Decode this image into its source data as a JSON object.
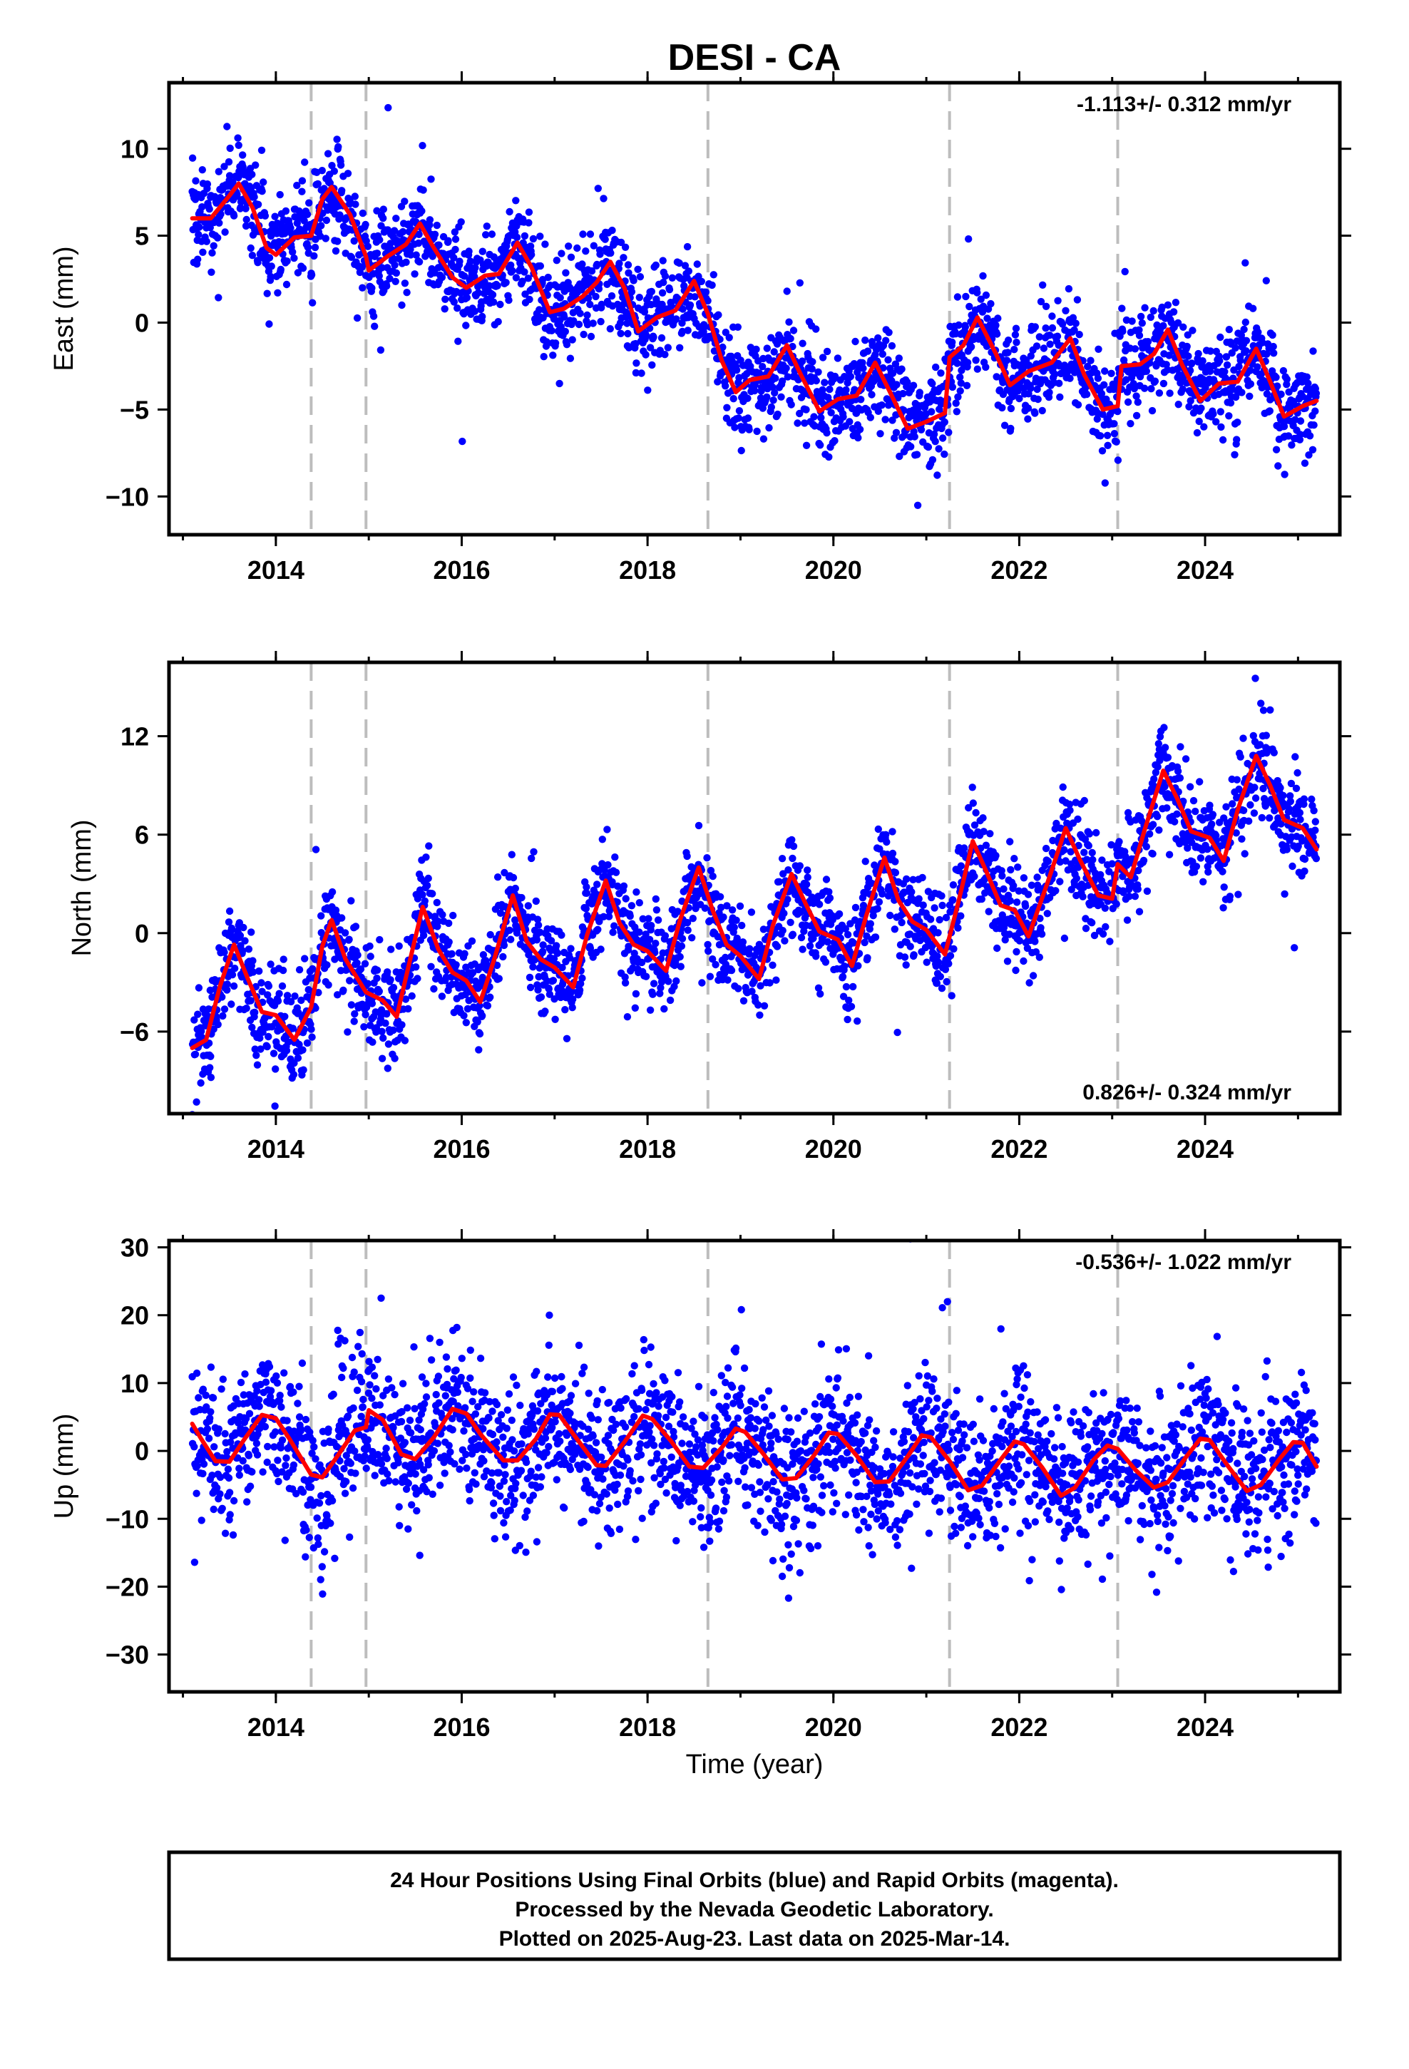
{
  "chart_data": {
    "type": "scatter",
    "title": "DESI - CA",
    "xlabel": "Time (year)",
    "xlim": [
      2012.85,
      2025.45
    ],
    "xticks": [
      2014,
      2016,
      2018,
      2020,
      2022,
      2024
    ],
    "equipment_change_epochs": [
      2014.38,
      2014.97,
      2018.65,
      2021.25,
      2023.06
    ],
    "colors": {
      "points": "#0000ff",
      "fit": "#ff0000",
      "breaks": "#bdbdbd",
      "frame": "#000000"
    },
    "panels": [
      {
        "name": "East",
        "ylabel": "East (mm)",
        "ylim": [
          -12.2,
          13.8
        ],
        "yticks": [
          10,
          5,
          0,
          -5,
          -10
        ],
        "yticklabels": [
          "10",
          "5",
          "0",
          "−5",
          "−10"
        ],
        "rate_label": "-1.113+/- 0.312 mm/yr",
        "rate_position": "top-right",
        "seasonal_fit": [
          [
            2013.1,
            6.0
          ],
          [
            2013.3,
            6.0
          ],
          [
            2013.5,
            7.3
          ],
          [
            2013.6,
            8.0
          ],
          [
            2013.75,
            6.6
          ],
          [
            2013.9,
            4.3
          ],
          [
            2014.0,
            3.9
          ],
          [
            2014.2,
            4.9
          ],
          [
            2014.38,
            5.0
          ],
          [
            2014.5,
            7.1
          ],
          [
            2014.6,
            7.8
          ],
          [
            2014.8,
            6.2
          ],
          [
            2014.97,
            3.8
          ],
          [
            2015.0,
            3.0
          ],
          [
            2015.2,
            3.8
          ],
          [
            2015.4,
            4.5
          ],
          [
            2015.55,
            5.7
          ],
          [
            2015.7,
            4.3
          ],
          [
            2015.9,
            2.6
          ],
          [
            2016.05,
            2.0
          ],
          [
            2016.25,
            2.7
          ],
          [
            2016.4,
            2.8
          ],
          [
            2016.6,
            4.6
          ],
          [
            2016.75,
            3.2
          ],
          [
            2016.95,
            0.6
          ],
          [
            2017.1,
            0.8
          ],
          [
            2017.3,
            1.5
          ],
          [
            2017.45,
            2.3
          ],
          [
            2017.6,
            3.5
          ],
          [
            2017.75,
            2.0
          ],
          [
            2017.9,
            -0.5
          ],
          [
            2018.1,
            0.3
          ],
          [
            2018.3,
            0.7
          ],
          [
            2018.5,
            2.4
          ],
          [
            2018.65,
            0.5
          ],
          [
            2018.8,
            -2.2
          ],
          [
            2018.95,
            -4.0
          ],
          [
            2019.1,
            -3.3
          ],
          [
            2019.3,
            -3.1
          ],
          [
            2019.5,
            -1.3
          ],
          [
            2019.65,
            -3.0
          ],
          [
            2019.85,
            -5.1
          ],
          [
            2020.05,
            -4.4
          ],
          [
            2020.25,
            -4.2
          ],
          [
            2020.45,
            -2.3
          ],
          [
            2020.6,
            -3.9
          ],
          [
            2020.8,
            -6.1
          ],
          [
            2021.0,
            -5.7
          ],
          [
            2021.2,
            -5.2
          ],
          [
            2021.25,
            -2.0
          ],
          [
            2021.4,
            -1.3
          ],
          [
            2021.55,
            0.3
          ],
          [
            2021.75,
            -1.8
          ],
          [
            2021.9,
            -3.6
          ],
          [
            2022.1,
            -2.8
          ],
          [
            2022.35,
            -2.3
          ],
          [
            2022.55,
            -0.9
          ],
          [
            2022.7,
            -3.0
          ],
          [
            2022.9,
            -5.0
          ],
          [
            2023.06,
            -4.8
          ],
          [
            2023.1,
            -2.5
          ],
          [
            2023.3,
            -2.4
          ],
          [
            2023.45,
            -1.8
          ],
          [
            2023.6,
            -0.4
          ],
          [
            2023.75,
            -2.4
          ],
          [
            2023.95,
            -4.5
          ],
          [
            2024.15,
            -3.5
          ],
          [
            2024.35,
            -3.4
          ],
          [
            2024.55,
            -1.5
          ],
          [
            2024.7,
            -3.4
          ],
          [
            2024.85,
            -5.4
          ],
          [
            2025.05,
            -4.8
          ],
          [
            2025.2,
            -4.5
          ]
        ]
      },
      {
        "name": "North",
        "ylabel": "North (mm)",
        "ylim": [
          -11,
          16.5
        ],
        "yticks": [
          12,
          6,
          0,
          -6
        ],
        "yticklabels": [
          "12",
          "6",
          "0",
          "−6"
        ],
        "rate_label": "0.826+/- 0.324 mm/yr",
        "rate_position": "bottom-right",
        "seasonal_fit": [
          [
            2013.1,
            -7.0
          ],
          [
            2013.25,
            -6.5
          ],
          [
            2013.4,
            -3.2
          ],
          [
            2013.55,
            -0.7
          ],
          [
            2013.7,
            -2.8
          ],
          [
            2013.85,
            -4.8
          ],
          [
            2014.0,
            -5.0
          ],
          [
            2014.2,
            -6.5
          ],
          [
            2014.38,
            -4.5
          ],
          [
            2014.5,
            -0.8
          ],
          [
            2014.6,
            0.8
          ],
          [
            2014.75,
            -1.6
          ],
          [
            2014.97,
            -3.6
          ],
          [
            2015.15,
            -4.1
          ],
          [
            2015.3,
            -5.1
          ],
          [
            2015.45,
            -1.5
          ],
          [
            2015.58,
            1.6
          ],
          [
            2015.75,
            -1.0
          ],
          [
            2015.9,
            -2.4
          ],
          [
            2016.05,
            -2.9
          ],
          [
            2016.2,
            -4.2
          ],
          [
            2016.35,
            -1.6
          ],
          [
            2016.55,
            2.3
          ],
          [
            2016.7,
            -0.5
          ],
          [
            2016.85,
            -1.6
          ],
          [
            2017.0,
            -2.1
          ],
          [
            2017.2,
            -3.3
          ],
          [
            2017.35,
            -0.1
          ],
          [
            2017.55,
            3.2
          ],
          [
            2017.7,
            0.6
          ],
          [
            2017.85,
            -0.7
          ],
          [
            2018.0,
            -1.1
          ],
          [
            2018.2,
            -2.3
          ],
          [
            2018.35,
            0.8
          ],
          [
            2018.55,
            4.0
          ],
          [
            2018.7,
            1.4
          ],
          [
            2018.85,
            -0.7
          ],
          [
            2019.0,
            -1.4
          ],
          [
            2019.2,
            -2.8
          ],
          [
            2019.35,
            0.5
          ],
          [
            2019.55,
            3.6
          ],
          [
            2019.7,
            1.8
          ],
          [
            2019.85,
            0.1
          ],
          [
            2020.05,
            -0.4
          ],
          [
            2020.2,
            -2.0
          ],
          [
            2020.35,
            1.0
          ],
          [
            2020.55,
            4.6
          ],
          [
            2020.7,
            2.0
          ],
          [
            2020.85,
            0.7
          ],
          [
            2021.0,
            0.2
          ],
          [
            2021.2,
            -1.3
          ],
          [
            2021.35,
            2.0
          ],
          [
            2021.5,
            5.6
          ],
          [
            2021.65,
            3.7
          ],
          [
            2021.8,
            1.7
          ],
          [
            2021.95,
            1.4
          ],
          [
            2022.1,
            -0.2
          ],
          [
            2022.3,
            3.0
          ],
          [
            2022.5,
            6.4
          ],
          [
            2022.65,
            4.5
          ],
          [
            2022.85,
            2.3
          ],
          [
            2023.0,
            2.1
          ],
          [
            2023.06,
            4.2
          ],
          [
            2023.2,
            3.4
          ],
          [
            2023.35,
            6.3
          ],
          [
            2023.55,
            9.9
          ],
          [
            2023.7,
            8.2
          ],
          [
            2023.85,
            6.2
          ],
          [
            2024.05,
            5.8
          ],
          [
            2024.2,
            4.4
          ],
          [
            2024.35,
            7.5
          ],
          [
            2024.55,
            10.8
          ],
          [
            2024.7,
            9.0
          ],
          [
            2024.85,
            6.9
          ],
          [
            2025.05,
            6.4
          ],
          [
            2025.2,
            5.1
          ]
        ]
      },
      {
        "name": "Up",
        "ylabel": "Up (mm)",
        "ylim": [
          -35.5,
          31
        ],
        "yticks": [
          30,
          20,
          10,
          0,
          -10,
          -20,
          -30
        ],
        "yticklabels": [
          "30",
          "20",
          "10",
          "0",
          "−10",
          "−20",
          "−30"
        ],
        "rate_label": "-0.536+/- 1.022 mm/yr",
        "rate_position": "top-right",
        "seasonal_fit": [
          [
            2013.1,
            4.0
          ],
          [
            2013.2,
            1.7
          ],
          [
            2013.35,
            -1.5
          ],
          [
            2013.5,
            -1.6
          ],
          [
            2013.65,
            1.5
          ],
          [
            2013.85,
            5.3
          ],
          [
            2014.0,
            4.8
          ],
          [
            2014.15,
            1.7
          ],
          [
            2014.38,
            -3.5
          ],
          [
            2014.5,
            -3.9
          ],
          [
            2014.65,
            -1.0
          ],
          [
            2014.85,
            3.0
          ],
          [
            2014.97,
            3.5
          ],
          [
            2015.0,
            6.0
          ],
          [
            2015.15,
            4.6
          ],
          [
            2015.35,
            -0.5
          ],
          [
            2015.5,
            -1.2
          ],
          [
            2015.7,
            2.0
          ],
          [
            2015.9,
            6.2
          ],
          [
            2016.05,
            5.5
          ],
          [
            2016.2,
            2.5
          ],
          [
            2016.45,
            -1.4
          ],
          [
            2016.6,
            -1.4
          ],
          [
            2016.8,
            1.8
          ],
          [
            2016.95,
            5.4
          ],
          [
            2017.05,
            5.3
          ],
          [
            2017.2,
            2.5
          ],
          [
            2017.45,
            -2.1
          ],
          [
            2017.55,
            -2.2
          ],
          [
            2017.75,
            1.3
          ],
          [
            2017.95,
            5.2
          ],
          [
            2018.05,
            4.7
          ],
          [
            2018.25,
            1.5
          ],
          [
            2018.45,
            -2.3
          ],
          [
            2018.6,
            -2.5
          ],
          [
            2018.8,
            0.5
          ],
          [
            2018.95,
            3.3
          ],
          [
            2019.05,
            2.8
          ],
          [
            2019.25,
            -0.5
          ],
          [
            2019.45,
            -4.2
          ],
          [
            2019.6,
            -4.0
          ],
          [
            2019.8,
            -0.5
          ],
          [
            2019.95,
            2.7
          ],
          [
            2020.05,
            2.5
          ],
          [
            2020.25,
            -0.7
          ],
          [
            2020.45,
            -4.6
          ],
          [
            2020.6,
            -4.5
          ],
          [
            2020.8,
            -0.8
          ],
          [
            2020.95,
            2.3
          ],
          [
            2021.05,
            2.0
          ],
          [
            2021.25,
            -1.5
          ],
          [
            2021.45,
            -5.8
          ],
          [
            2021.6,
            -5.1
          ],
          [
            2021.8,
            -1.3
          ],
          [
            2021.95,
            1.4
          ],
          [
            2022.05,
            1.0
          ],
          [
            2022.25,
            -2.5
          ],
          [
            2022.45,
            -6.6
          ],
          [
            2022.6,
            -5.4
          ],
          [
            2022.8,
            -1.3
          ],
          [
            2022.95,
            0.8
          ],
          [
            2023.06,
            0.3
          ],
          [
            2023.25,
            -2.8
          ],
          [
            2023.45,
            -5.4
          ],
          [
            2023.6,
            -4.6
          ],
          [
            2023.8,
            -0.8
          ],
          [
            2023.95,
            1.8
          ],
          [
            2024.05,
            1.6
          ],
          [
            2024.25,
            -2.3
          ],
          [
            2024.45,
            -5.9
          ],
          [
            2024.6,
            -5.0
          ],
          [
            2024.8,
            -1.2
          ],
          [
            2024.95,
            1.3
          ],
          [
            2025.05,
            1.2
          ],
          [
            2025.2,
            -2.3
          ]
        ]
      }
    ]
  },
  "footer": {
    "line1": "24 Hour Positions Using Final Orbits (blue) and Rapid Orbits (magenta).",
    "line2": "Processed by the Nevada Geodetic Laboratory.",
    "line3": "Plotted on 2025-Aug-23. Last data on 2025-Mar-14."
  }
}
